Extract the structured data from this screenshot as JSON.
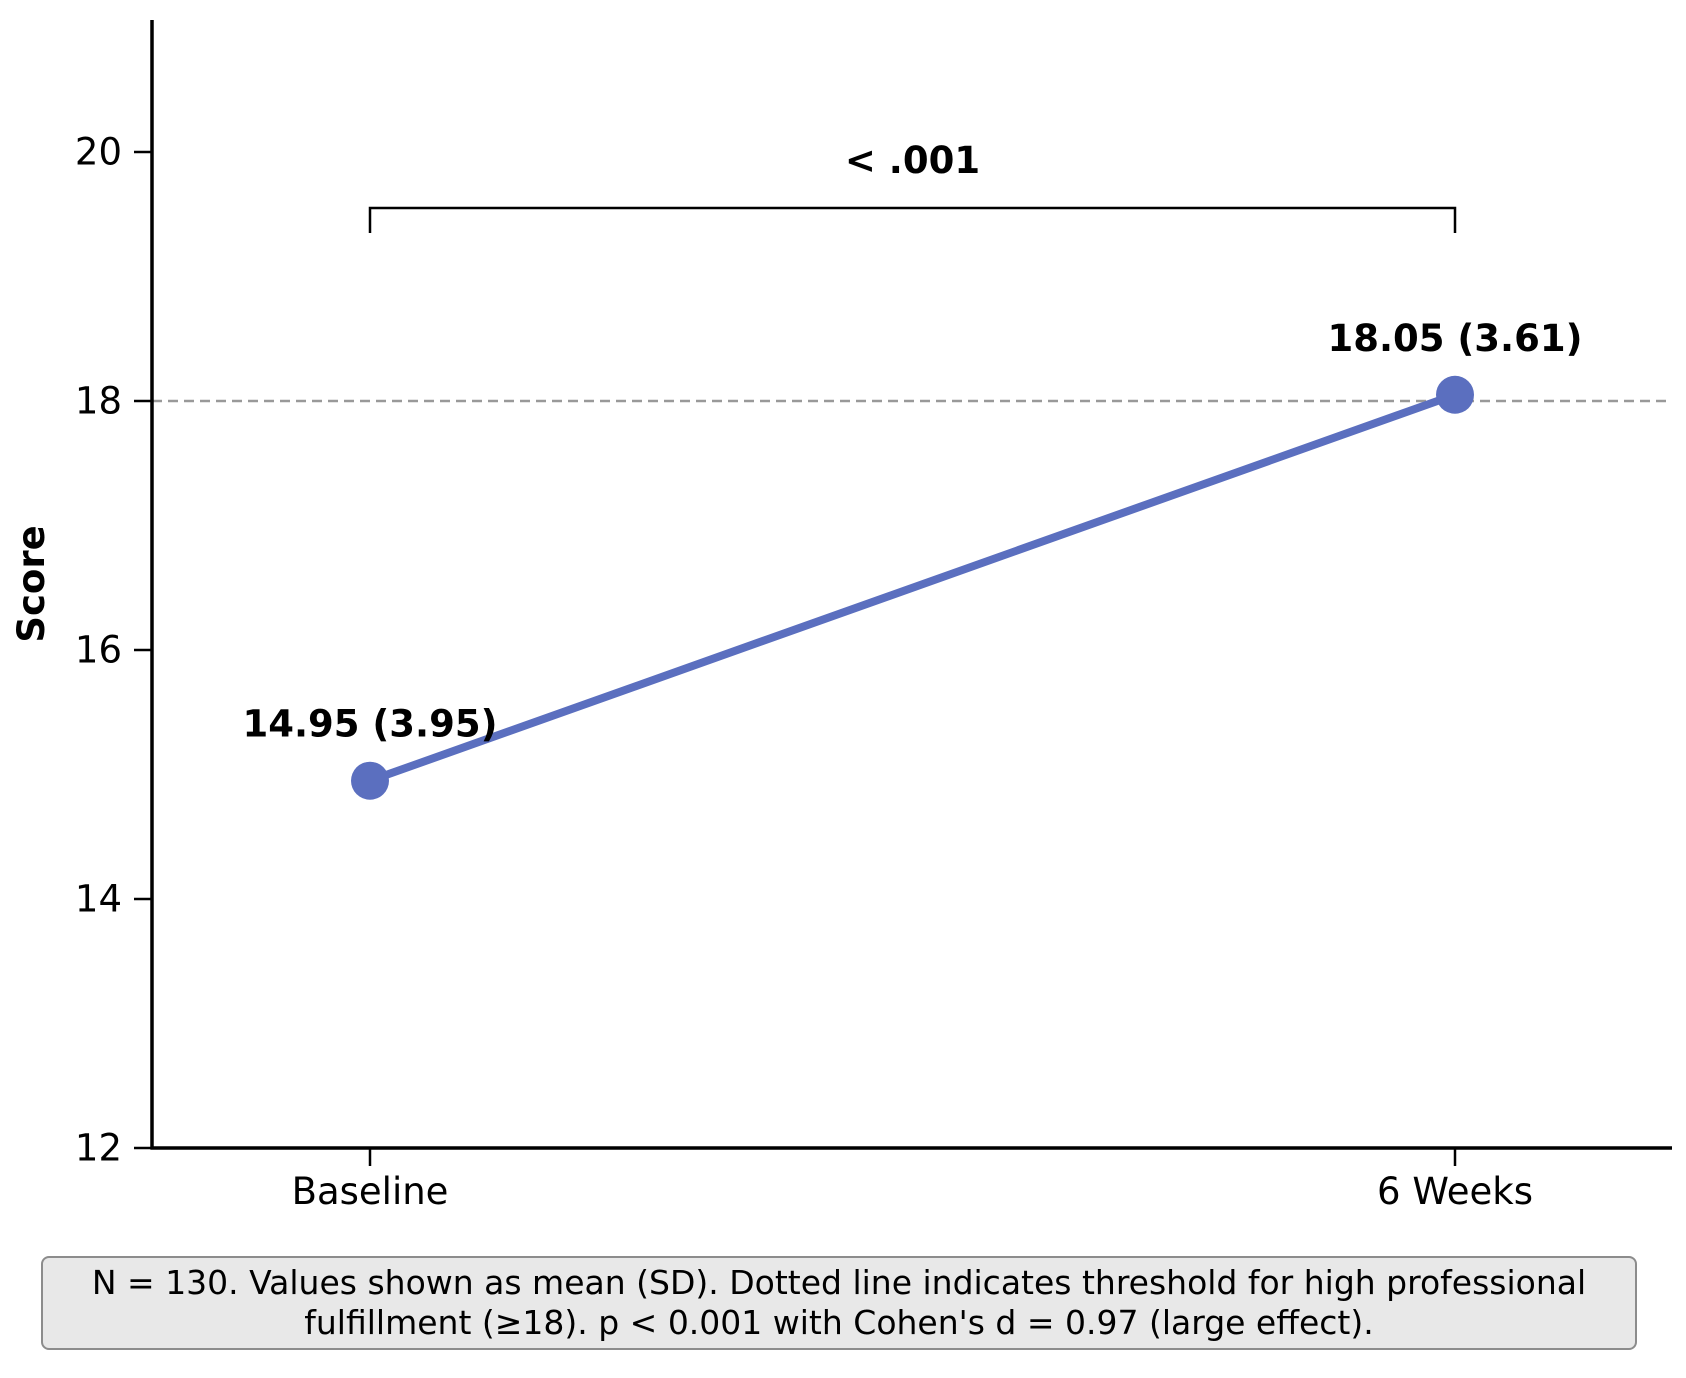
{
  "chart_data": {
    "type": "line",
    "categories": [
      "Baseline",
      "6 Weeks"
    ],
    "series": [
      {
        "values": [
          14.95,
          18.05
        ],
        "sd": [
          3.95,
          3.61
        ],
        "labels": [
          "14.95 (3.95)",
          "18.05 (3.61)"
        ],
        "color": "#5b6fbf"
      }
    ],
    "ylabel": "Score",
    "xlabel": "",
    "ylim": [
      12,
      21.06
    ],
    "yticks": [
      12,
      14,
      16,
      18,
      20
    ],
    "threshold": {
      "value": 18,
      "style": "dashed",
      "color": "#999999"
    },
    "significance": {
      "label": "< .001",
      "bracket_y": 19.55,
      "from": "Baseline",
      "to": "6 Weeks"
    },
    "grid": false
  },
  "caption": {
    "line1": "N = 130. Values shown as mean (SD). Dotted line indicates threshold for high professional",
    "line2": "fulfillment (≥18). p < 0.001 with Cohen's d = 0.97 (large effect)."
  }
}
